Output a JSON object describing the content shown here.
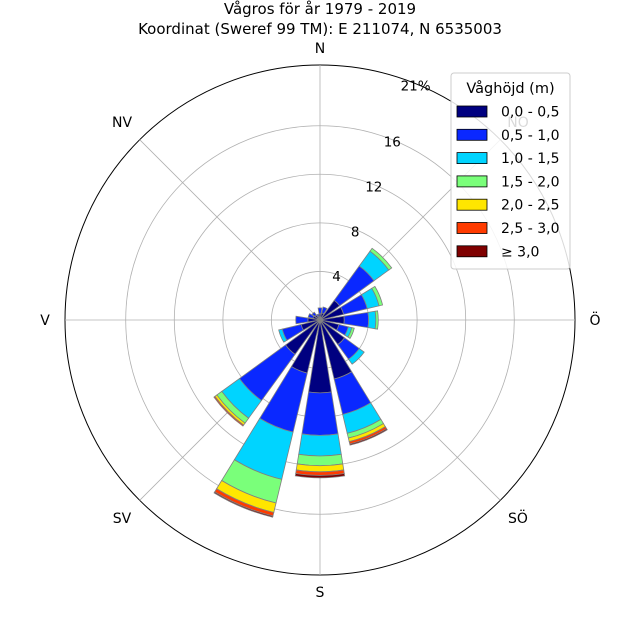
{
  "chart_data": {
    "type": "windrose",
    "title": "Vågros för år 1979 - 2019",
    "subtitle": "Koordinat (Sweref 99 TM): E 211074, N 6535003",
    "directions": [
      "N",
      "NO",
      "Ö",
      "SÖ",
      "S",
      "SV",
      "V",
      "NV"
    ],
    "direction_tick_labels": [
      "N",
      "NO",
      "Ö",
      "SÖ",
      "S",
      "SV",
      "V",
      "NV"
    ],
    "radial_ticks": [
      "4",
      "8",
      "12",
      "16",
      "21%"
    ],
    "radial_tick_values": [
      4,
      8,
      12,
      16,
      21
    ],
    "rmax": 21,
    "sector_centers_deg": [
      0,
      22.5,
      45,
      67.5,
      90,
      112.5,
      135,
      157.5,
      180,
      202.5,
      225,
      247.5,
      270,
      292.5,
      315,
      337.5
    ],
    "legend": {
      "title": "Våghöjd (m)",
      "placement": "upper right",
      "entries": [
        "0,0 - 0,5",
        "0,5 - 1,0",
        "1,0 - 1,5",
        "1,5 - 2,0",
        "2,0 - 2,5",
        "2,5 - 3,0",
        "≥ 3,0"
      ],
      "colors": [
        "#000080",
        "#0a28ff",
        "#00d4ff",
        "#7aff7a",
        "#ffe600",
        "#ff3b00",
        "#7f0000"
      ]
    },
    "series": [
      {
        "name": "0,0 - 0,5",
        "values": [
          0.5,
          0.6,
          2.0,
          2.0,
          2.0,
          1.6,
          2.5,
          5.0,
          6.0,
          4.5,
          3.5,
          1.6,
          1.0,
          0.6,
          0.5,
          0.3
        ]
      },
      {
        "name": "0,5 - 1,0",
        "values": [
          0.5,
          0.5,
          3.5,
          2.0,
          2.0,
          0.8,
          1.5,
          3.0,
          3.5,
          5.0,
          4.7,
          1.6,
          1.0,
          0.4,
          0.3,
          0.2
        ]
      },
      {
        "name": "1,0 - 1,5",
        "values": [
          0.0,
          0.0,
          1.5,
          1.0,
          0.6,
          0.3,
          0.5,
          1.6,
          1.7,
          4.0,
          1.8,
          0.3,
          0.0,
          0.0,
          0.0,
          0.0
        ]
      },
      {
        "name": "1,5 - 2,0",
        "values": [
          0.0,
          0.0,
          0.3,
          0.3,
          0.2,
          0.2,
          0.0,
          0.4,
          0.8,
          2.0,
          0.5,
          0.0,
          0.0,
          0.0,
          0.0,
          0.0
        ]
      },
      {
        "name": "2,0 - 2,5",
        "values": [
          0.0,
          0.0,
          0.0,
          0.0,
          0.0,
          0.0,
          0.0,
          0.3,
          0.5,
          0.8,
          0.2,
          0.0,
          0.0,
          0.0,
          0.0,
          0.0
        ]
      },
      {
        "name": "2,5 - 3,0",
        "values": [
          0.0,
          0.0,
          0.0,
          0.0,
          0.0,
          0.0,
          0.0,
          0.2,
          0.3,
          0.3,
          0.1,
          0.0,
          0.0,
          0.0,
          0.0,
          0.0
        ]
      },
      {
        "name": "≥ 3,0",
        "values": [
          0.0,
          0.0,
          0.0,
          0.0,
          0.0,
          0.0,
          0.0,
          0.1,
          0.2,
          0.1,
          0.0,
          0.0,
          0.0,
          0.0,
          0.0,
          0.0
        ]
      }
    ],
    "grid": true
  }
}
